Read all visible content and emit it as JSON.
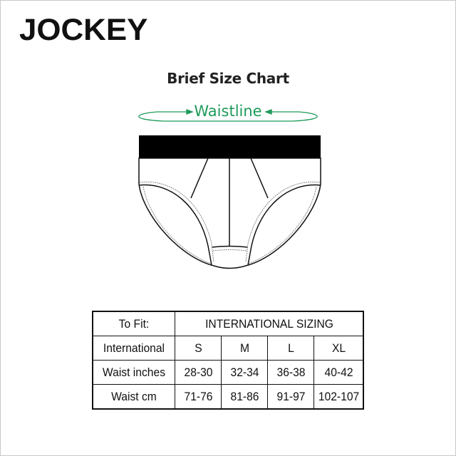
{
  "brand": "JOCKEY",
  "title": "Brief Size Chart",
  "waistline_label": "Waistline",
  "accent_color": "#1e9a5a",
  "table": {
    "header": {
      "label": "To Fit:",
      "group": "INTERNATIONAL SIZING"
    },
    "rows": [
      {
        "label": "International",
        "values": [
          "S",
          "M",
          "L",
          "XL"
        ]
      },
      {
        "label": "Waist inches",
        "values": [
          "28-30",
          "32-34",
          "36-38",
          "40-42"
        ]
      },
      {
        "label": "Waist cm",
        "values": [
          "71-76",
          "81-86",
          "91-97",
          "102-107"
        ]
      }
    ]
  }
}
